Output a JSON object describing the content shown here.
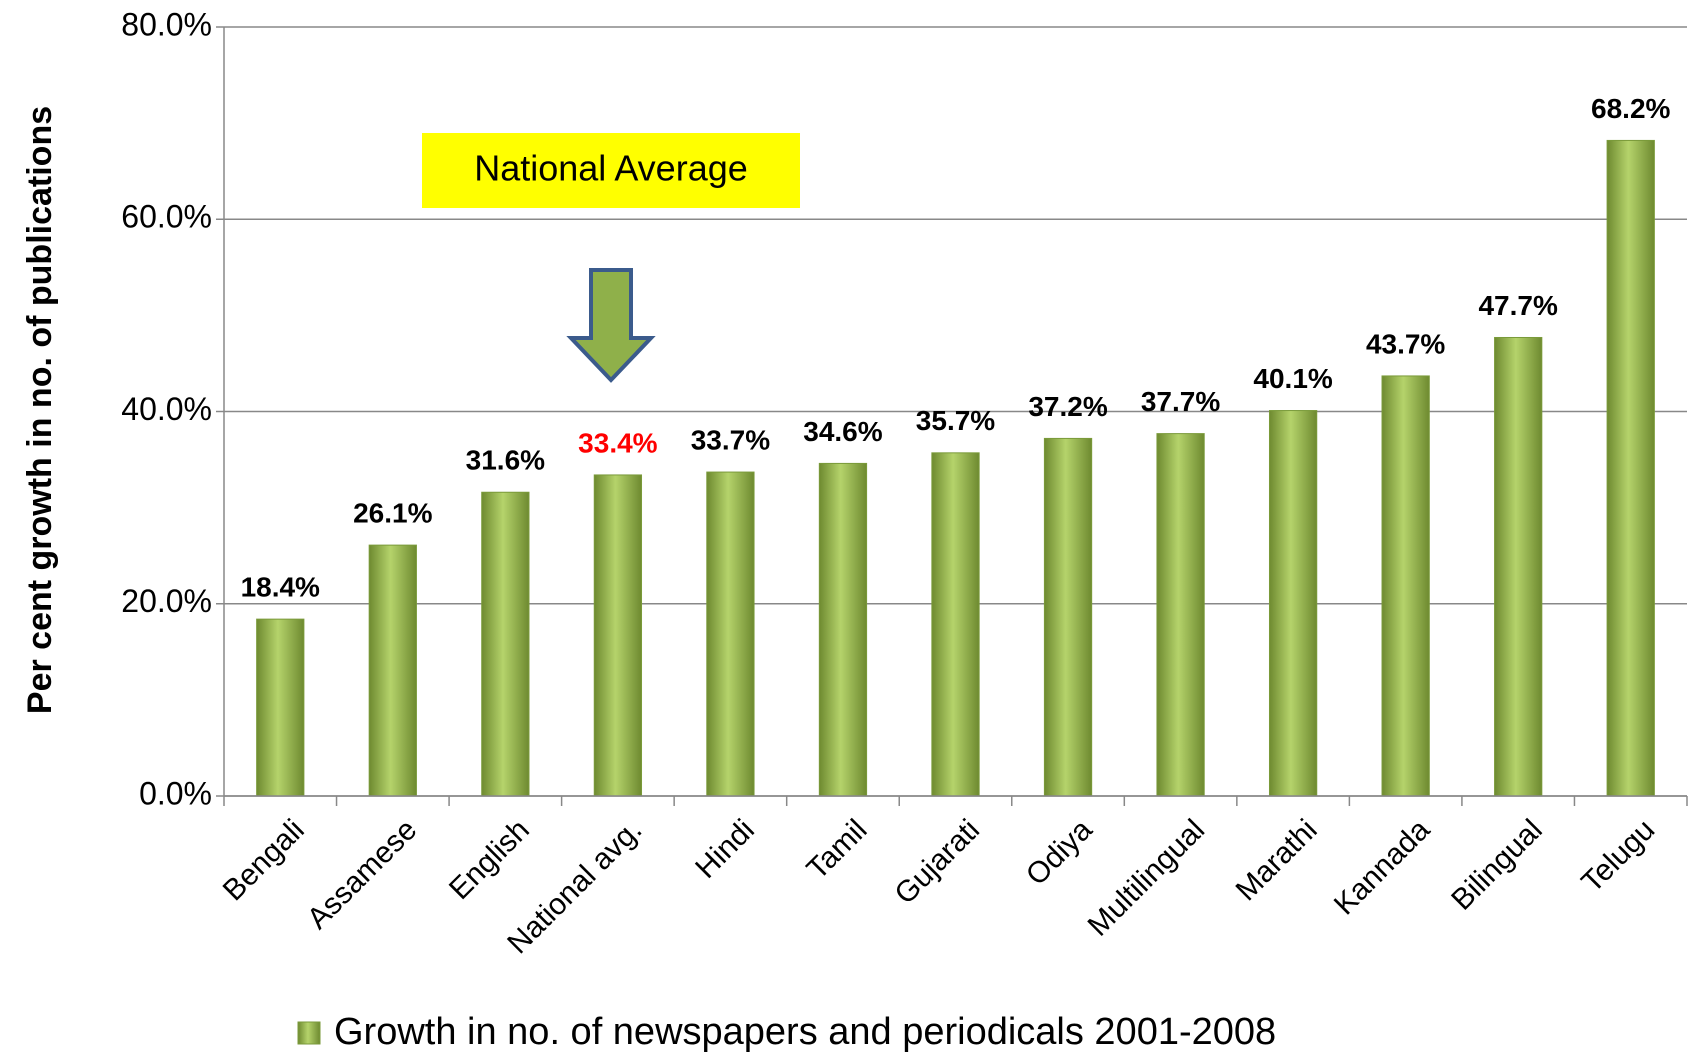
{
  "chart_data": {
    "type": "bar",
    "y_label": "Per cent growth in no. of publications",
    "categories": [
      "Bengali",
      "Assamese",
      "English",
      "National avg.",
      "Hindi",
      "Tamil",
      "Gujarati",
      "Odiya",
      "Multilingual",
      "Marathi",
      "Kannada",
      "Bilingual",
      "Telugu"
    ],
    "series": [
      {
        "name": "Growth in no. of newspapers and periodicals 2001-2008",
        "color": "#9bbb59",
        "values": [
          18.4,
          26.1,
          31.6,
          33.4,
          33.7,
          34.6,
          35.7,
          37.2,
          37.7,
          40.1,
          43.7,
          47.7,
          68.2
        ],
        "value_labels": [
          "18.4%",
          "26.1%",
          "31.6%",
          "33.4%",
          "33.7%",
          "34.6%",
          "35.7%",
          "37.2%",
          "37.7%",
          "40.1%",
          "43.7%",
          "47.7%",
          "68.2%"
        ],
        "value_label_colors": [
          "#000000",
          "#000000",
          "#000000",
          "#ff0000",
          "#000000",
          "#000000",
          "#000000",
          "#000000",
          "#000000",
          "#000000",
          "#000000",
          "#000000",
          "#000000"
        ]
      }
    ],
    "ylim": [
      0,
      80
    ],
    "yticks": [
      {
        "value": 0,
        "label": "0.0%"
      },
      {
        "value": 20,
        "label": "20.0%"
      },
      {
        "value": 40,
        "label": "40.0%"
      },
      {
        "value": 60,
        "label": "60.0%"
      },
      {
        "value": 80,
        "label": "80.0%"
      }
    ],
    "grid": true,
    "legend": "bottom",
    "annotation": "National Average"
  }
}
